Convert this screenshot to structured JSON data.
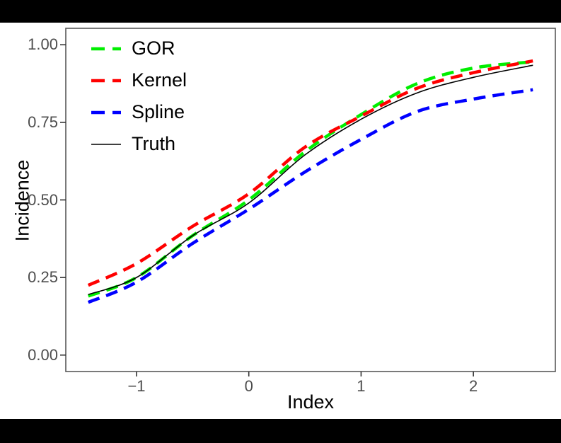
{
  "figure": {
    "frame_color": "#000000",
    "panel_background": "#ffffff",
    "panel_border_color": "#595959",
    "tick_color": "#333333",
    "tick_label_color": "#4d4d4d",
    "axis_title_color": "#000000"
  },
  "chart_data": {
    "type": "line",
    "title": "",
    "xlabel": "Index",
    "ylabel": "Incidence",
    "xlim": [
      -1.63,
      2.73
    ],
    "ylim": [
      -0.053,
      1.053
    ],
    "grid": false,
    "legend_position": "inside-top-left",
    "x_tick_values": [
      -1,
      0,
      1,
      2
    ],
    "x_tick_labels": [
      "−1",
      "0",
      "1",
      "2"
    ],
    "y_tick_values": [
      0,
      0.25,
      0.5,
      0.75,
      1
    ],
    "y_tick_labels": [
      "0.00",
      "0.25",
      "0.50",
      "0.75",
      "1.00"
    ],
    "x": [
      -1.43,
      -1.0,
      -0.5,
      0.0,
      0.5,
      1.0,
      1.5,
      2.0,
      2.53
    ],
    "series": [
      {
        "name": "GOR",
        "color": "#00EE00",
        "dashed": true,
        "values": [
          0.19,
          0.25,
          0.385,
          0.5,
          0.655,
          0.775,
          0.875,
          0.925,
          0.945
        ]
      },
      {
        "name": "Kernel",
        "color": "#FF0000",
        "dashed": true,
        "values": [
          0.225,
          0.295,
          0.415,
          0.52,
          0.67,
          0.77,
          0.86,
          0.91,
          0.948
        ]
      },
      {
        "name": "Spline",
        "color": "#0000FF",
        "dashed": true,
        "values": [
          0.17,
          0.235,
          0.36,
          0.47,
          0.59,
          0.695,
          0.785,
          0.825,
          0.855
        ]
      },
      {
        "name": "Truth",
        "color": "#000000",
        "dashed": false,
        "values": [
          0.195,
          0.25,
          0.385,
          0.49,
          0.645,
          0.76,
          0.845,
          0.895,
          0.934
        ]
      }
    ]
  }
}
